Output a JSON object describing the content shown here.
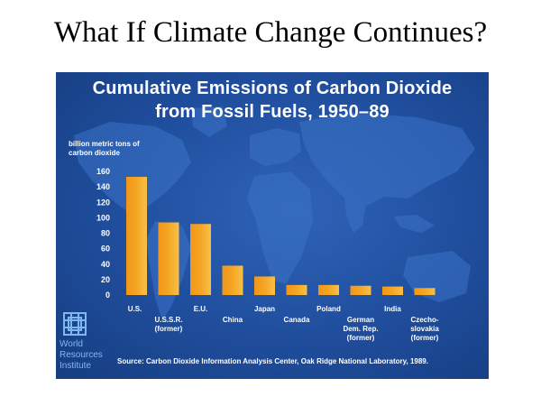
{
  "slide": {
    "title": "What If Climate Change Continues?"
  },
  "logo": {
    "line1": "World",
    "line2": "Resources",
    "line3": "Institute"
  },
  "source": "Source: Carbon Dioxide Information Analysis Center, Oak Ridge National Laboratory, 1989.",
  "colors": {
    "background": "#1f4d9c",
    "bar": "#f5a623",
    "text": "#ffffff",
    "logo": "#7fb8f0"
  },
  "chart_data": {
    "type": "bar",
    "title_line1": "Cumulative Emissions of Carbon Dioxide",
    "title_line2": "from Fossil Fuels, 1950–89",
    "ylabel_line1": "billion metric tons of",
    "ylabel_line2": "carbon dioxide",
    "ylim": [
      0,
      160
    ],
    "yticks": [
      "0",
      "20",
      "40",
      "60",
      "80",
      "100",
      "120",
      "140",
      "160"
    ],
    "grid": false,
    "legend": "none",
    "categories": [
      {
        "lines": [
          "U.S."
        ],
        "value": 153
      },
      {
        "lines": [
          "U.S.S.R.",
          "(former)"
        ],
        "value": 94
      },
      {
        "lines": [
          "E.U."
        ],
        "value": 92
      },
      {
        "lines": [
          "China"
        ],
        "value": 38
      },
      {
        "lines": [
          "Japan"
        ],
        "value": 24
      },
      {
        "lines": [
          "Canada"
        ],
        "value": 13
      },
      {
        "lines": [
          "Poland"
        ],
        "value": 13
      },
      {
        "lines": [
          "German",
          "Dem. Rep.",
          "(former)"
        ],
        "value": 12
      },
      {
        "lines": [
          "India"
        ],
        "value": 11
      },
      {
        "lines": [
          "Czecho-",
          "slovakia",
          "(former)"
        ],
        "value": 9
      }
    ]
  }
}
